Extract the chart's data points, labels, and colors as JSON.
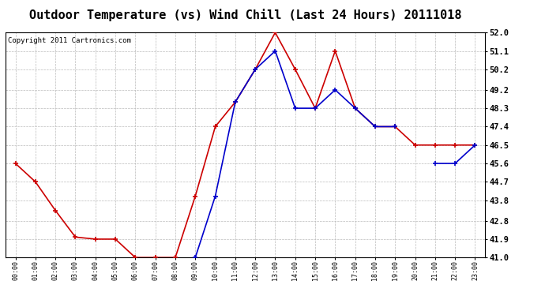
{
  "title": "Outdoor Temperature (vs) Wind Chill (Last 24 Hours) 20111018",
  "copyright": "Copyright 2011 Cartronics.com",
  "x_labels": [
    "00:00",
    "01:00",
    "02:00",
    "03:00",
    "04:00",
    "05:00",
    "06:00",
    "07:00",
    "08:00",
    "09:00",
    "10:00",
    "11:00",
    "12:00",
    "13:00",
    "14:00",
    "15:00",
    "16:00",
    "17:00",
    "18:00",
    "19:00",
    "20:00",
    "21:00",
    "22:00",
    "23:00"
  ],
  "temp_red": [
    45.6,
    44.7,
    43.3,
    42.0,
    41.9,
    41.9,
    41.0,
    41.0,
    41.0,
    44.0,
    47.4,
    48.6,
    50.2,
    52.0,
    50.2,
    48.3,
    51.1,
    48.3,
    47.4,
    47.4,
    46.5,
    46.5,
    46.5,
    46.5
  ],
  "wind_blue": [
    null,
    null,
    null,
    null,
    null,
    null,
    null,
    null,
    null,
    41.0,
    44.0,
    48.6,
    50.2,
    51.1,
    48.3,
    48.3,
    49.2,
    48.3,
    47.4,
    47.4,
    null,
    45.6,
    45.6,
    46.5
  ],
  "ylim_min": 41.0,
  "ylim_max": 52.0,
  "yticks": [
    41.0,
    41.9,
    42.8,
    43.8,
    44.7,
    45.6,
    46.5,
    47.4,
    48.3,
    49.2,
    50.2,
    51.1,
    52.0
  ],
  "red_color": "#cc0000",
  "blue_color": "#0000cc",
  "bg_color": "#ffffff",
  "plot_bg": "#ffffff",
  "grid_color": "#bbbbbb",
  "title_fontsize": 11,
  "copyright_fontsize": 6.5
}
